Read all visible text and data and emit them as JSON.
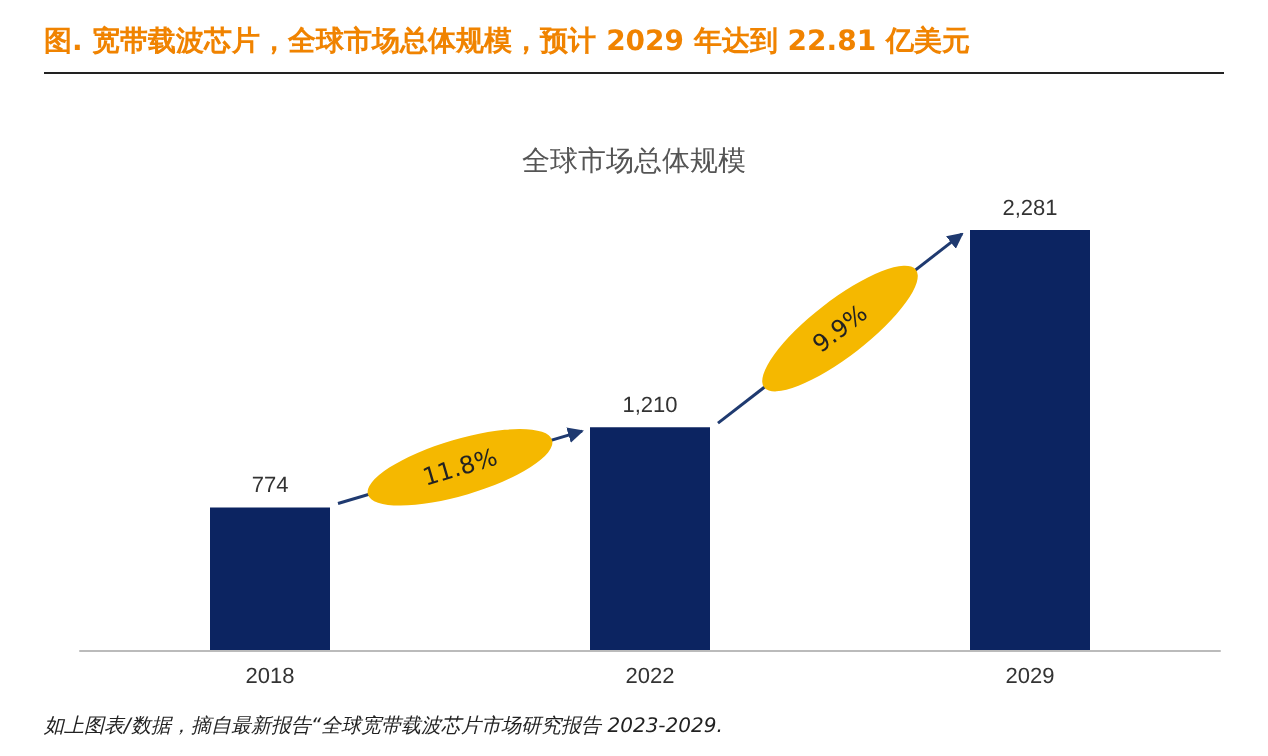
{
  "chart_data": {
    "type": "bar",
    "title": "图.   宽带载波芯片，全球市场总体规模，预计 2029 年达到 22.81 亿美元",
    "subtitle": "全球市场总体规模",
    "categories": [
      "2018",
      "2022",
      "2029"
    ],
    "values": [
      774,
      1210,
      2281
    ],
    "value_labels": [
      "774",
      "1,210",
      "2,281"
    ],
    "color": "#0c2461",
    "annotations": [
      "11.8%",
      "9.9%",
      "如上图表/数据，摘自最新报告“全球宽带载波芯片市场研究报告 2023-2029."
    ]
  }
}
